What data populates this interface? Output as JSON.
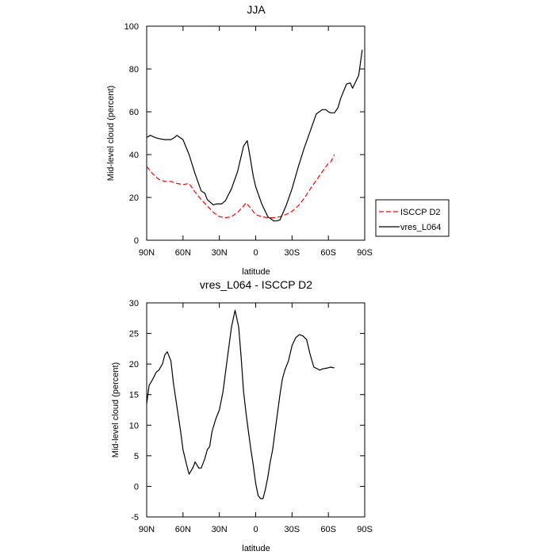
{
  "chart_data": [
    {
      "type": "line",
      "title": "JJA",
      "xlabel": "latitude",
      "ylabel": "Mid-level cloud (percent)",
      "xlim": [
        -90,
        90
      ],
      "ylim": [
        0,
        100
      ],
      "xticks": [
        -90,
        -60,
        -30,
        0,
        30,
        60,
        90
      ],
      "xtick_labels": [
        "90N",
        "60N",
        "30N",
        "0",
        "30S",
        "60S",
        "90S"
      ],
      "yticks": [
        0,
        20,
        40,
        60,
        80,
        100
      ],
      "ytick_labels": [
        "0",
        "20",
        "40",
        "60",
        "80",
        "100"
      ],
      "legend_position": "right",
      "series": [
        {
          "name": "ISCCP D2",
          "color": "#ff0000",
          "dash": true,
          "x": [
            -90,
            -85,
            -80,
            -75,
            -70,
            -65,
            -60,
            -55,
            -50,
            -45,
            -40,
            -35,
            -30,
            -25,
            -20,
            -15,
            -10,
            -8,
            -5,
            0,
            5,
            10,
            15,
            20,
            25,
            30,
            35,
            40,
            45,
            50,
            55,
            60,
            62,
            65
          ],
          "y": [
            34.5,
            31,
            28.5,
            27.5,
            27.5,
            26.5,
            26,
            26.5,
            22.5,
            19,
            16,
            13,
            11,
            10.5,
            11,
            13,
            16,
            17.5,
            15.5,
            12,
            11,
            10.5,
            10.5,
            11,
            12,
            13.5,
            16,
            19.5,
            24,
            28,
            32,
            36,
            36.5,
            40
          ]
        },
        {
          "name": "vres_L064",
          "color": "#000000",
          "dash": false,
          "x": [
            -90,
            -87,
            -83,
            -80,
            -75,
            -70,
            -67,
            -65,
            -60,
            -55,
            -50,
            -45,
            -42,
            -40,
            -35,
            -32,
            -28,
            -25,
            -20,
            -15,
            -10,
            -7,
            -5,
            -2,
            0,
            5,
            10,
            15,
            17,
            20,
            25,
            30,
            35,
            40,
            45,
            50,
            55,
            58,
            60,
            62,
            65,
            68,
            70,
            75,
            78,
            80,
            85,
            88
          ],
          "y": [
            48,
            49,
            48,
            47.5,
            47,
            47,
            48,
            49,
            47,
            40,
            31,
            23,
            22,
            19,
            16.5,
            17,
            17,
            18.5,
            24,
            32,
            44,
            46.5,
            40,
            30,
            25,
            17,
            11,
            9,
            9,
            9.5,
            16,
            24,
            34,
            43,
            51,
            59,
            61,
            61,
            60,
            59.5,
            59.5,
            62,
            66,
            73,
            73.5,
            71,
            77,
            89
          ]
        }
      ]
    },
    {
      "type": "line",
      "title": "vres_L064 - ISCCP D2",
      "xlabel": "latitude",
      "ylabel": "Mid-level cloud (percent)",
      "xlim": [
        -90,
        90
      ],
      "ylim": [
        -5,
        30
      ],
      "xticks": [
        -90,
        -60,
        -30,
        0,
        30,
        60,
        90
      ],
      "xtick_labels": [
        "90N",
        "60N",
        "30N",
        "0",
        "30S",
        "60S",
        "90S"
      ],
      "yticks": [
        -5,
        0,
        5,
        10,
        15,
        20,
        25,
        30
      ],
      "ytick_labels": [
        "-5",
        "0",
        "5",
        "10",
        "15",
        "20",
        "25",
        "30"
      ],
      "series": [
        {
          "name": "vres_L064 - ISCCP D2",
          "color": "#000000",
          "dash": false,
          "x": [
            -90,
            -88,
            -85,
            -82,
            -80,
            -77,
            -75,
            -73,
            -70,
            -68,
            -65,
            -62,
            -60,
            -57,
            -55,
            -52,
            -50,
            -47,
            -45,
            -42,
            -40,
            -38,
            -36,
            -33,
            -30,
            -27,
            -24,
            -20,
            -17,
            -14,
            -12,
            -10,
            -8,
            -6,
            -4,
            -2,
            0,
            2,
            4,
            6,
            8,
            10,
            12,
            14,
            16,
            18,
            20,
            22,
            24,
            27,
            30,
            33,
            36,
            39,
            42,
            45,
            48,
            50,
            53,
            55,
            58,
            60,
            62,
            64,
            65
          ],
          "y": [
            13.5,
            16.5,
            17.5,
            18.7,
            19,
            20,
            21.5,
            22,
            20.5,
            17,
            13,
            9,
            6,
            3.5,
            2,
            3,
            4,
            3,
            3,
            4.5,
            6,
            6.5,
            9,
            11,
            12.5,
            15.5,
            20,
            26,
            28.8,
            26,
            21,
            15.5,
            12,
            9,
            6,
            3.5,
            0.5,
            -1.5,
            -2,
            -2,
            -0.5,
            1.5,
            4,
            6,
            9,
            12,
            15,
            17.5,
            19,
            20.5,
            23,
            24.3,
            24.8,
            24.6,
            24,
            21.5,
            19.5,
            19.3,
            19,
            19.2,
            19.3,
            19.4,
            19.5,
            19.4,
            19.4
          ]
        }
      ]
    }
  ]
}
